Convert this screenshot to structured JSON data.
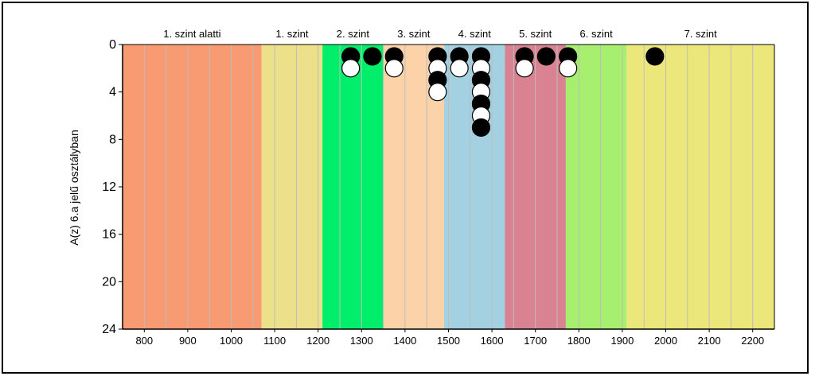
{
  "chart_data": {
    "type": "scatter",
    "ylabel": "A(z) 6.a jelű osztályban",
    "xlim": [
      750,
      2250
    ],
    "ylim": [
      0,
      24
    ],
    "y_inverted": true,
    "x_ticks": [
      800,
      900,
      1000,
      1100,
      1200,
      1300,
      1400,
      1500,
      1600,
      1700,
      1800,
      1900,
      2000,
      2100,
      2200
    ],
    "y_ticks": [
      0,
      4,
      8,
      12,
      16,
      20,
      24
    ],
    "grid": "vertical",
    "bands": [
      {
        "label": "1. szint alatti",
        "x0": 750,
        "x1": 1070,
        "color": "#f99b72"
      },
      {
        "label": "1. szint",
        "x0": 1070,
        "x1": 1210,
        "color": "#ede08a"
      },
      {
        "label": "2. szint",
        "x0": 1210,
        "x1": 1350,
        "color": "#00ee6a"
      },
      {
        "label": "3. szint",
        "x0": 1350,
        "x1": 1490,
        "color": "#fcd2a9"
      },
      {
        "label": "4. szint",
        "x0": 1490,
        "x1": 1630,
        "color": "#a3d1e1"
      },
      {
        "label": "5. szint",
        "x0": 1630,
        "x1": 1770,
        "color": "#d98291"
      },
      {
        "label": "6. szint",
        "x0": 1770,
        "x1": 1910,
        "color": "#a7ef6e"
      },
      {
        "label": "7. szint",
        "x0": 1910,
        "x1": 2250,
        "color": "#ece77a"
      }
    ],
    "points": [
      {
        "x": 1275,
        "y": 1,
        "fill": "black"
      },
      {
        "x": 1275,
        "y": 2,
        "fill": "white"
      },
      {
        "x": 1325,
        "y": 1,
        "fill": "black"
      },
      {
        "x": 1375,
        "y": 1,
        "fill": "black"
      },
      {
        "x": 1375,
        "y": 2,
        "fill": "white"
      },
      {
        "x": 1475,
        "y": 1,
        "fill": "black"
      },
      {
        "x": 1475,
        "y": 2,
        "fill": "white"
      },
      {
        "x": 1475,
        "y": 3,
        "fill": "black"
      },
      {
        "x": 1475,
        "y": 4,
        "fill": "white"
      },
      {
        "x": 1525,
        "y": 1,
        "fill": "black"
      },
      {
        "x": 1525,
        "y": 2,
        "fill": "white"
      },
      {
        "x": 1575,
        "y": 1,
        "fill": "black"
      },
      {
        "x": 1575,
        "y": 2,
        "fill": "white"
      },
      {
        "x": 1575,
        "y": 3,
        "fill": "black"
      },
      {
        "x": 1575,
        "y": 4,
        "fill": "white"
      },
      {
        "x": 1575,
        "y": 5,
        "fill": "black"
      },
      {
        "x": 1575,
        "y": 6,
        "fill": "white"
      },
      {
        "x": 1575,
        "y": 7,
        "fill": "black"
      },
      {
        "x": 1675,
        "y": 1,
        "fill": "black"
      },
      {
        "x": 1675,
        "y": 2,
        "fill": "white"
      },
      {
        "x": 1725,
        "y": 1,
        "fill": "black"
      },
      {
        "x": 1775,
        "y": 1,
        "fill": "black"
      },
      {
        "x": 1775,
        "y": 2,
        "fill": "white"
      },
      {
        "x": 1975,
        "y": 1,
        "fill": "black"
      }
    ]
  }
}
